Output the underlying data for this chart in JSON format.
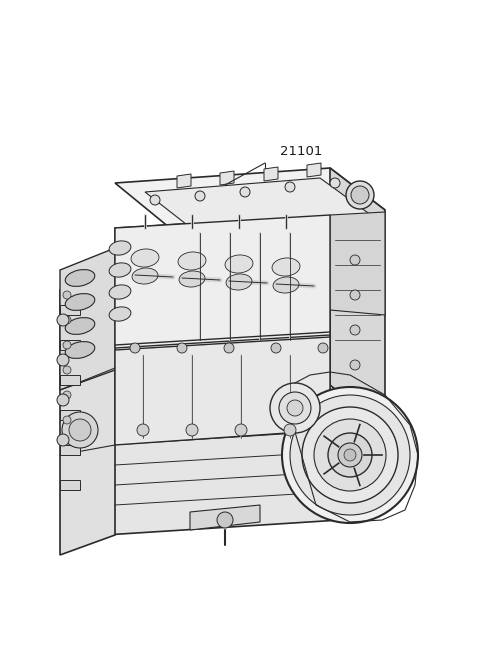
{
  "background_color": "#ffffff",
  "label_text": "21101",
  "line_color": "#2a2a2a",
  "fig_width": 4.8,
  "fig_height": 6.56,
  "dpi": 100,
  "engine_image_b64": ""
}
